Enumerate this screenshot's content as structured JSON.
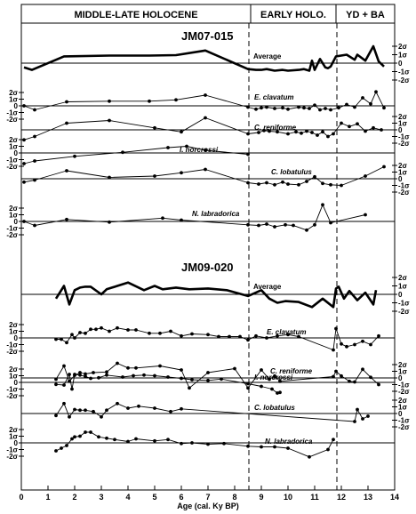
{
  "periods": [
    "MIDDLE-LATE HOLOCENE",
    "EARLY HOLO.",
    "YD + BA"
  ],
  "boundaries": [
    8.5,
    11.7
  ],
  "x_axis": {
    "label": "Age (cal. Ky BP)",
    "ticks": [
      "0",
      "1",
      "2",
      "3",
      "4",
      "5",
      "6",
      "7",
      "8",
      "9",
      "10",
      "11",
      "12",
      "13",
      "14"
    ],
    "range": [
      0,
      14
    ]
  },
  "sigma_ticks": [
    "2σ",
    "1σ",
    "0",
    "-1σ",
    "-2σ"
  ],
  "chart_data": [
    {
      "type": "line",
      "panel": "JM07-015",
      "series": [
        {
          "name": "Average",
          "x": [
            0.1,
            0.4,
            1.6,
            3.3,
            4.8,
            5.8,
            6.9,
            8.5,
            8.8,
            9.0,
            9.2,
            9.5,
            9.8,
            10.0,
            10.4,
            10.6,
            10.8,
            10.9,
            11.0,
            11.2,
            11.4,
            11.5,
            11.6,
            11.8,
            12.2,
            12.5,
            12.6,
            12.9,
            13.2,
            13.4,
            13.6
          ],
          "y": [
            -0.5,
            -0.8,
            0.8,
            0.9,
            0.9,
            0.95,
            1.5,
            -0.7,
            -0.8,
            -0.8,
            -0.7,
            -0.9,
            -0.8,
            -0.9,
            -0.8,
            -0.7,
            -0.9,
            0.3,
            -0.8,
            0.5,
            -0.5,
            -0.6,
            -0.4,
            0.8,
            1.0,
            0.4,
            1.0,
            0.3,
            2.0,
            0.2,
            -0.4
          ]
        },
        {
          "name": "E. clavatum",
          "x": [
            0.1,
            0.5,
            1.7,
            3.3,
            4.8,
            5.8,
            6.9,
            8.5,
            8.8,
            9.0,
            9.2,
            9.5,
            9.8,
            10.0,
            10.4,
            10.6,
            10.8,
            11.0,
            11.2,
            11.4,
            11.6,
            11.9,
            12.2,
            12.5,
            12.8,
            13.1,
            13.3,
            13.6
          ],
          "y": [
            0.0,
            -0.6,
            0.6,
            0.7,
            0.7,
            0.9,
            1.6,
            -0.2,
            -0.5,
            -0.3,
            -0.2,
            -0.4,
            -0.3,
            -0.5,
            -0.2,
            -0.3,
            -0.4,
            0.1,
            -0.6,
            -0.4,
            -0.6,
            -0.3,
            0.2,
            -0.2,
            1.2,
            0.3,
            2.1,
            -0.3
          ]
        },
        {
          "name": "C. reniforme",
          "x": [
            0.1,
            0.5,
            1.7,
            3.3,
            5.0,
            6.0,
            6.9,
            8.5,
            8.9,
            9.1,
            9.3,
            9.6,
            10.0,
            10.3,
            10.5,
            10.7,
            10.9,
            11.1,
            11.3,
            11.5,
            11.7,
            12.0,
            12.3,
            12.6,
            12.9,
            13.2,
            13.5
          ],
          "y": [
            -1.5,
            -1.0,
            1.0,
            1.4,
            0.3,
            -0.3,
            1.8,
            -0.6,
            -0.4,
            -0.1,
            -0.2,
            -0.3,
            -0.6,
            -0.3,
            -0.5,
            -0.2,
            -0.4,
            -0.8,
            -0.3,
            -1.0,
            -0.6,
            1.0,
            0.5,
            0.9,
            -0.2,
            0.3,
            0.0
          ]
        },
        {
          "name": "I. norcrossi",
          "x": [
            0.1,
            0.5,
            2.0,
            3.8,
            5.5,
            6.2,
            6.9,
            8.5
          ],
          "y": [
            -1.6,
            -1.2,
            -0.5,
            0.1,
            0.8,
            1.0,
            0.4,
            -0.2
          ]
        },
        {
          "name": "C. lobatulus",
          "x": [
            0.1,
            0.5,
            1.7,
            3.3,
            5.0,
            6.0,
            6.9,
            8.5,
            8.9,
            9.2,
            9.5,
            9.8,
            10.0,
            10.4,
            10.7,
            11.0,
            11.3,
            11.6,
            12.0,
            12.9,
            13.6
          ],
          "y": [
            -0.5,
            -0.2,
            1.2,
            0.2,
            0.4,
            0.9,
            1.4,
            -0.6,
            -0.8,
            -0.6,
            -0.9,
            -0.5,
            -0.8,
            -0.9,
            -0.4,
            0.3,
            -0.7,
            -0.9,
            -1.0,
            0.4,
            1.8
          ]
        },
        {
          "name": "N. labradorica",
          "x": [
            0.1,
            0.5,
            1.7,
            3.3,
            5.3,
            6.0,
            8.5,
            8.9,
            9.2,
            9.5,
            9.9,
            10.2,
            10.7,
            11.0,
            11.3,
            11.6,
            12.9
          ],
          "y": [
            0.0,
            -0.6,
            0.3,
            -0.1,
            0.5,
            0.2,
            -0.5,
            -0.6,
            -0.4,
            -0.8,
            -0.5,
            -0.6,
            -1.3,
            -0.5,
            2.5,
            -0.2,
            1.0
          ]
        }
      ]
    },
    {
      "type": "line",
      "panel": "JM09-020",
      "series": [
        {
          "name": "Average",
          "x": [
            1.3,
            1.6,
            1.8,
            2.0,
            2.2,
            2.4,
            2.6,
            3.0,
            3.2,
            3.6,
            4.0,
            4.6,
            5.0,
            5.3,
            5.8,
            6.3,
            7.0,
            7.7,
            8.5,
            9.0,
            9.3,
            9.6,
            9.9,
            10.4,
            10.9,
            11.3,
            11.7,
            11.8,
            11.9,
            12.1,
            12.3,
            12.6,
            12.9,
            13.2,
            13.3
          ],
          "y": [
            -0.5,
            1.0,
            -1.2,
            0.5,
            0.8,
            0.9,
            0.9,
            0.0,
            0.6,
            1.0,
            1.4,
            0.5,
            1.0,
            0.6,
            0.8,
            0.6,
            0.7,
            0.5,
            -0.2,
            0.5,
            -0.5,
            -1.0,
            -0.8,
            -0.9,
            -1.5,
            -0.5,
            -1.5,
            0.7,
            0.9,
            -0.5,
            0.4,
            -0.7,
            0.2,
            -1.2,
            0.5
          ]
        },
        {
          "name": "E. clavatum",
          "x": [
            1.3,
            1.5,
            1.7,
            1.9,
            2.0,
            2.2,
            2.4,
            2.6,
            2.8,
            3.0,
            3.3,
            3.6,
            4.0,
            4.3,
            4.8,
            5.2,
            5.6,
            6.0,
            6.4,
            7.0,
            7.4,
            7.8,
            8.2,
            8.5,
            8.8,
            9.2,
            9.6,
            10.0,
            10.4,
            11.7,
            11.8,
            12.0,
            12.2,
            12.5,
            12.8,
            13.1,
            13.4
          ],
          "y": [
            -0.2,
            -0.2,
            -0.7,
            0.5,
            0.0,
            0.8,
            0.7,
            1.3,
            1.3,
            1.5,
            1.0,
            1.5,
            1.2,
            1.2,
            0.7,
            0.7,
            1.0,
            0.3,
            0.6,
            0.5,
            0.2,
            0.2,
            0.2,
            -0.3,
            0.3,
            0.0,
            0.3,
            0.5,
            0.2,
            -1.8,
            1.4,
            -0.9,
            -1.3,
            -1.0,
            -0.5,
            -1.0,
            0.3
          ]
        },
        {
          "name": "C. reniforme",
          "x": [
            1.3,
            1.6,
            1.8,
            2.0,
            2.2,
            2.4,
            2.7,
            3.2,
            3.6,
            4.0,
            4.3,
            5.2,
            6.0,
            6.3,
            7.0,
            8.0,
            8.5,
            9.0,
            9.3,
            9.5,
            9.7,
            11.7,
            11.8,
            12.0,
            12.3,
            12.5,
            12.8,
            13.1,
            13.4
          ],
          "y": [
            -0.2,
            1.8,
            -0.5,
            0.4,
            0.8,
            0.6,
            0.8,
            0.9,
            2.2,
            1.5,
            1.5,
            1.8,
            1.2,
            -1.5,
            0.8,
            1.4,
            -1.5,
            1.2,
            -0.2,
            0.3,
            -0.5,
            0.2,
            1.0,
            0.3,
            -0.5,
            -0.6,
            1.3,
            0.1,
            -1.0
          ]
        },
        {
          "name": "I. norcrossi",
          "x": [
            1.3,
            1.6,
            1.8,
            1.9,
            2.0,
            2.2,
            2.4,
            2.6,
            2.9,
            3.2,
            3.8,
            4.2,
            4.6,
            5.0,
            5.5,
            6.0,
            6.4,
            7.0,
            7.5,
            8.5,
            9.0,
            9.4,
            9.6,
            9.7
          ],
          "y": [
            -0.3,
            -0.4,
            1.2,
            -1.0,
            1.2,
            1.1,
            0.9,
            0.6,
            0.7,
            1.1,
            0.8,
            1.0,
            1.1,
            1.0,
            0.8,
            0.6,
            0.4,
            0.3,
            0.5,
            -0.2,
            -0.6,
            -1.0,
            -1.6,
            -1.5
          ]
        },
        {
          "name": "C. lobatulus",
          "x": [
            1.3,
            1.6,
            1.8,
            2.0,
            2.2,
            2.4,
            2.7,
            3.0,
            3.2,
            3.6,
            4.0,
            4.4,
            5.0,
            5.6,
            6.0,
            12.5,
            12.6,
            12.8,
            13.0
          ],
          "y": [
            -0.3,
            1.5,
            -0.5,
            0.6,
            0.5,
            0.5,
            0.3,
            -0.5,
            0.5,
            1.5,
            0.8,
            1.1,
            0.8,
            0.3,
            0.7,
            -1.2,
            0.6,
            -0.8,
            -0.4
          ]
        },
        {
          "name": "N. labradorica",
          "x": [
            1.3,
            1.5,
            1.7,
            1.9,
            2.0,
            2.2,
            2.4,
            2.6,
            2.9,
            3.2,
            3.5,
            4.0,
            4.3,
            5.0,
            5.5,
            6.0,
            6.4,
            7.0,
            7.6,
            8.5,
            9.0,
            9.5,
            10.0,
            10.8,
            11.5,
            11.7
          ],
          "y": [
            -1.2,
            -0.8,
            -0.4,
            0.6,
            0.9,
            1.0,
            1.6,
            1.6,
            0.9,
            0.7,
            0.5,
            0.2,
            0.6,
            0.3,
            0.5,
            -0.1,
            0.0,
            -0.2,
            -0.1,
            -0.5,
            -0.6,
            -0.6,
            -0.8,
            -2.1,
            -1.0,
            0.5
          ]
        }
      ]
    }
  ],
  "labels": {
    "core1": "JM07-015",
    "core2": "JM09-020",
    "average": "Average",
    "ec": "E. clavatum",
    "cr": "C. reniforme",
    "in": "I. norcrossi",
    "cl": "C. lobatulus",
    "nl": "N. labradorica"
  }
}
